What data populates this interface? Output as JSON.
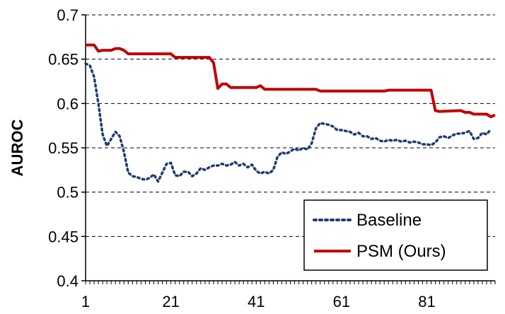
{
  "chart_data": {
    "type": "line",
    "title": "",
    "xlabel": "",
    "ylabel": "AUROC",
    "xlim": [
      1,
      97
    ],
    "ylim": [
      0.4,
      0.7
    ],
    "x_ticks": [
      1,
      21,
      41,
      61,
      81
    ],
    "y_ticks": [
      0.4,
      0.45,
      0.5,
      0.55,
      0.6,
      0.65,
      0.7
    ],
    "y_tick_labels": [
      "0.4",
      "0.45",
      "0.5",
      "0.55",
      "0.6",
      "0.65",
      "0.7"
    ],
    "grid": "horizontal dashed",
    "legend_position": "bottom-right",
    "series": [
      {
        "name": "Baseline",
        "color": "#1f3c70",
        "style": "dotted",
        "points": [
          [
            1,
            0.645
          ],
          [
            2,
            0.643
          ],
          [
            3,
            0.63
          ],
          [
            4,
            0.6
          ],
          [
            5,
            0.565
          ],
          [
            6,
            0.552
          ],
          [
            7,
            0.56
          ],
          [
            8,
            0.568
          ],
          [
            9,
            0.563
          ],
          [
            10,
            0.545
          ],
          [
            11,
            0.522
          ],
          [
            12,
            0.518
          ],
          [
            13,
            0.517
          ],
          [
            14,
            0.515
          ],
          [
            15,
            0.514
          ],
          [
            16,
            0.516
          ],
          [
            17,
            0.52
          ],
          [
            18,
            0.512
          ],
          [
            19,
            0.522
          ],
          [
            20,
            0.532
          ],
          [
            21,
            0.533
          ],
          [
            22,
            0.519
          ],
          [
            23,
            0.518
          ],
          [
            24,
            0.523
          ],
          [
            25,
            0.523
          ],
          [
            26,
            0.518
          ],
          [
            27,
            0.521
          ],
          [
            28,
            0.527
          ],
          [
            29,
            0.525
          ],
          [
            30,
            0.528
          ],
          [
            31,
            0.53
          ],
          [
            32,
            0.53
          ],
          [
            33,
            0.532
          ],
          [
            34,
            0.53
          ],
          [
            35,
            0.531
          ],
          [
            36,
            0.534
          ],
          [
            37,
            0.53
          ],
          [
            38,
            0.532
          ],
          [
            39,
            0.528
          ],
          [
            40,
            0.531
          ],
          [
            41,
            0.524
          ],
          [
            42,
            0.521
          ],
          [
            43,
            0.523
          ],
          [
            44,
            0.521
          ],
          [
            45,
            0.525
          ],
          [
            46,
            0.54
          ],
          [
            47,
            0.545
          ],
          [
            48,
            0.543
          ],
          [
            49,
            0.546
          ],
          [
            50,
            0.549
          ],
          [
            51,
            0.547
          ],
          [
            52,
            0.55
          ],
          [
            53,
            0.548
          ],
          [
            54,
            0.555
          ],
          [
            55,
            0.572
          ],
          [
            56,
            0.578
          ],
          [
            57,
            0.577
          ],
          [
            58,
            0.576
          ],
          [
            59,
            0.574
          ],
          [
            60,
            0.57
          ],
          [
            61,
            0.57
          ],
          [
            62,
            0.569
          ],
          [
            63,
            0.568
          ],
          [
            64,
            0.565
          ],
          [
            65,
            0.567
          ],
          [
            66,
            0.563
          ],
          [
            67,
            0.563
          ],
          [
            68,
            0.56
          ],
          [
            69,
            0.561
          ],
          [
            70,
            0.558
          ],
          [
            71,
            0.557
          ],
          [
            72,
            0.559
          ],
          [
            73,
            0.558
          ],
          [
            74,
            0.559
          ],
          [
            75,
            0.557
          ],
          [
            76,
            0.558
          ],
          [
            77,
            0.556
          ],
          [
            78,
            0.557
          ],
          [
            79,
            0.556
          ],
          [
            80,
            0.554
          ],
          [
            81,
            0.554
          ],
          [
            82,
            0.553
          ],
          [
            83,
            0.556
          ],
          [
            84,
            0.562
          ],
          [
            85,
            0.563
          ],
          [
            86,
            0.561
          ],
          [
            87,
            0.564
          ],
          [
            88,
            0.566
          ],
          [
            89,
            0.566
          ],
          [
            90,
            0.567
          ],
          [
            91,
            0.569
          ],
          [
            92,
            0.56
          ],
          [
            93,
            0.561
          ],
          [
            94,
            0.567
          ],
          [
            95,
            0.565
          ],
          [
            96,
            0.571
          ]
        ]
      },
      {
        "name": "PSM (Ours)",
        "color": "#c00000",
        "style": "solid",
        "points": [
          [
            1,
            0.666
          ],
          [
            2,
            0.666
          ],
          [
            3,
            0.666
          ],
          [
            4,
            0.659
          ],
          [
            5,
            0.66
          ],
          [
            6,
            0.66
          ],
          [
            7,
            0.66
          ],
          [
            8,
            0.662
          ],
          [
            9,
            0.662
          ],
          [
            10,
            0.66
          ],
          [
            11,
            0.656
          ],
          [
            12,
            0.656
          ],
          [
            20,
            0.656
          ],
          [
            21,
            0.656
          ],
          [
            22,
            0.652
          ],
          [
            23,
            0.652
          ],
          [
            30,
            0.652
          ],
          [
            31,
            0.646
          ],
          [
            32,
            0.617
          ],
          [
            33,
            0.622
          ],
          [
            34,
            0.622
          ],
          [
            35,
            0.618
          ],
          [
            36,
            0.618
          ],
          [
            40,
            0.618
          ],
          [
            41,
            0.618
          ],
          [
            42,
            0.62
          ],
          [
            43,
            0.616
          ],
          [
            44,
            0.616
          ],
          [
            55,
            0.616
          ],
          [
            56,
            0.614
          ],
          [
            57,
            0.614
          ],
          [
            70,
            0.614
          ],
          [
            71,
            0.614
          ],
          [
            72,
            0.615
          ],
          [
            80,
            0.615
          ],
          [
            81,
            0.615
          ],
          [
            82,
            0.615
          ],
          [
            83,
            0.592
          ],
          [
            84,
            0.591
          ],
          [
            89,
            0.592
          ],
          [
            90,
            0.59
          ],
          [
            91,
            0.59
          ],
          [
            92,
            0.588
          ],
          [
            93,
            0.588
          ],
          [
            95,
            0.588
          ],
          [
            96,
            0.585
          ],
          [
            97,
            0.587
          ]
        ]
      }
    ]
  },
  "legend": {
    "items": [
      {
        "label": "Baseline",
        "color": "#1f3c70",
        "style": "dotted"
      },
      {
        "label": "PSM (Ours)",
        "color": "#c00000",
        "style": "solid"
      }
    ]
  }
}
